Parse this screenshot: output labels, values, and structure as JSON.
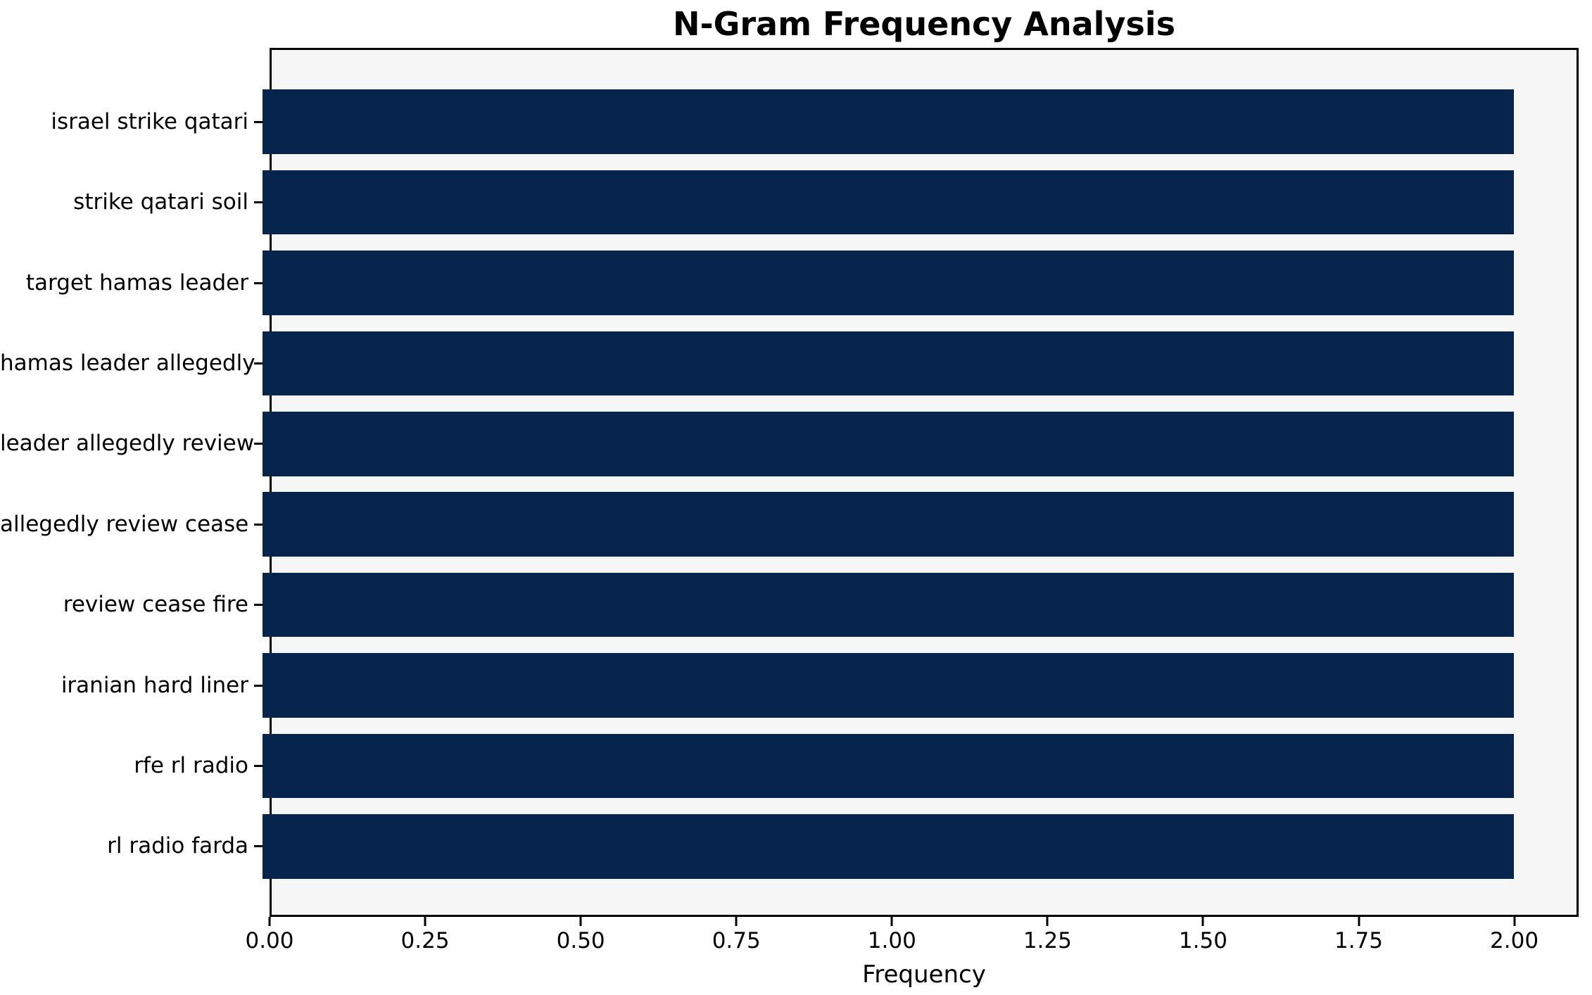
{
  "chart_data": {
    "type": "bar",
    "orientation": "horizontal",
    "title": "N-Gram Frequency Analysis",
    "xlabel": "Frequency",
    "ylabel": "",
    "categories": [
      "israel strike qatari",
      "strike qatari soil",
      "target hamas leader",
      "hamas leader allegedly",
      "leader allegedly review",
      "allegedly review cease",
      "review cease fire",
      "iranian hard liner",
      "rfe rl radio",
      "rl radio farda"
    ],
    "values": [
      2,
      2,
      2,
      2,
      2,
      2,
      2,
      2,
      2,
      2
    ],
    "xlim": [
      0,
      2.1
    ],
    "xtick_values": [
      0,
      0.25,
      0.5,
      0.75,
      1.0,
      1.25,
      1.5,
      1.75,
      2.0
    ],
    "xtick_labels": [
      "0.00",
      "0.25",
      "0.50",
      "0.75",
      "1.00",
      "1.25",
      "1.50",
      "1.75",
      "2.00"
    ],
    "grid": false,
    "legend": "none",
    "bar_color": "#07254c",
    "plot_background": "#f6f6f6",
    "figure_background": "#ffffff",
    "spine_color": "#000000"
  }
}
